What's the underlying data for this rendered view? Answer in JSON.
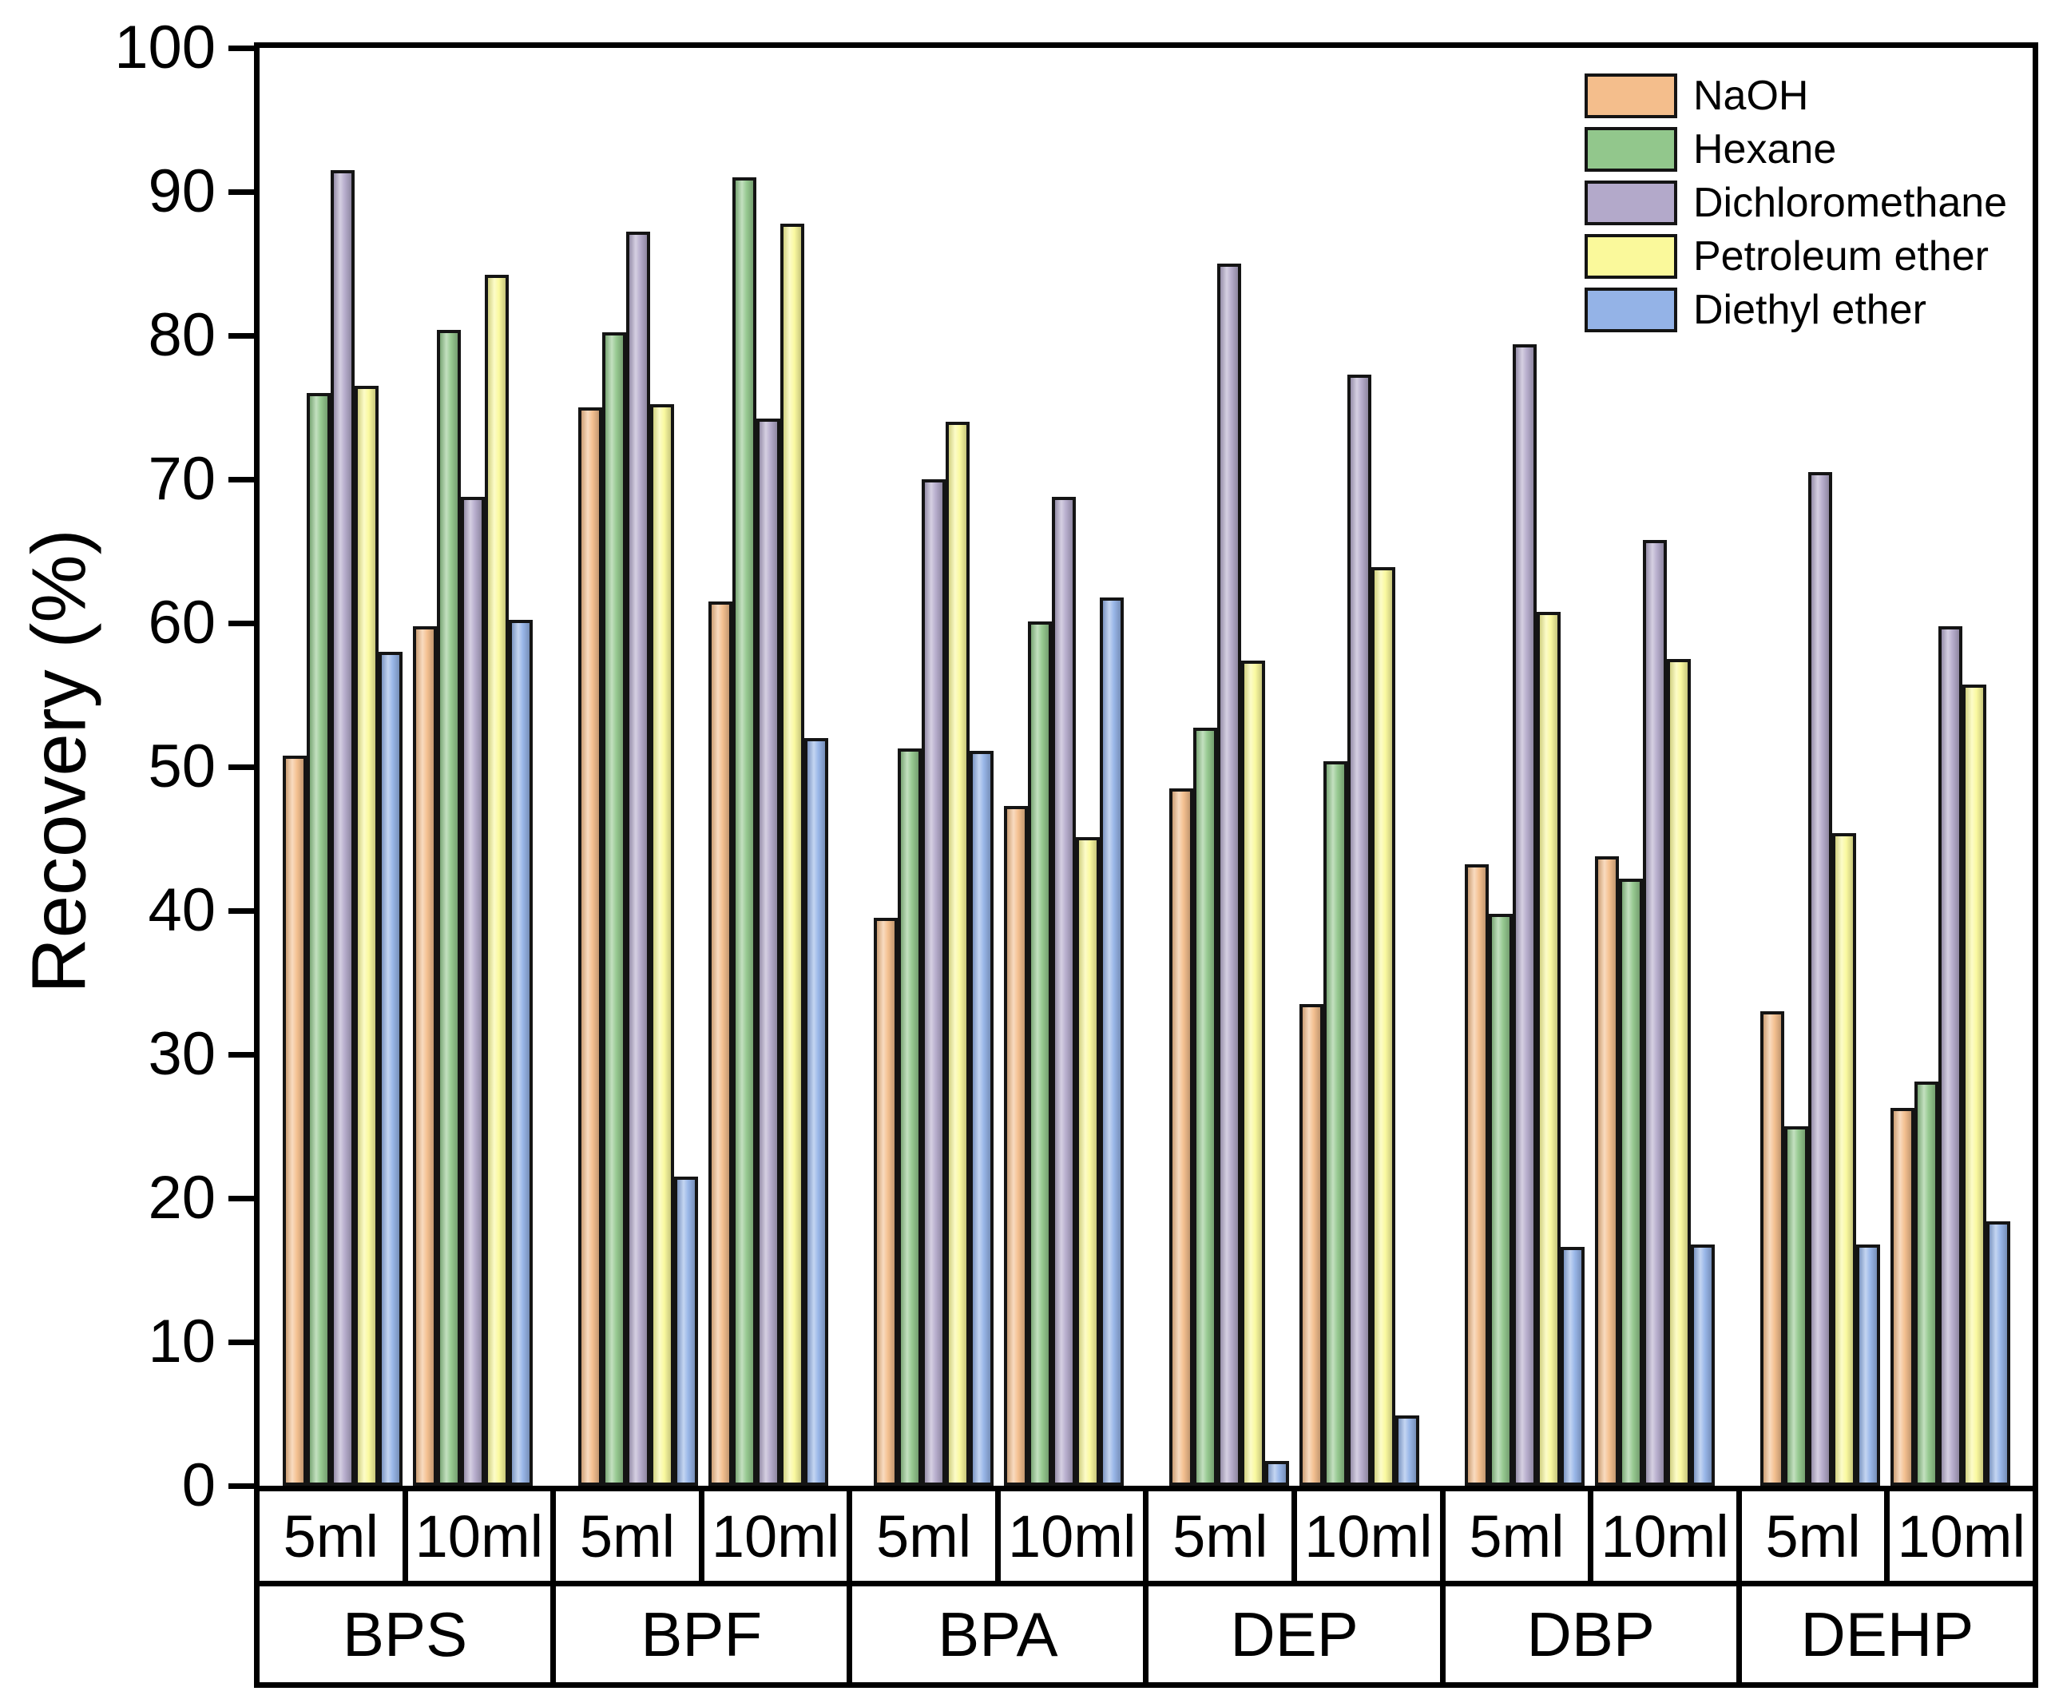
{
  "figure": {
    "background": "#ffffff",
    "axis_color": "#000000",
    "bar_border_color": "#141414",
    "legend_position": "top-right"
  },
  "chart_data": {
    "type": "bar",
    "title": "",
    "xlabel": "",
    "ylabel": "Recovery (%)",
    "ylim": [
      0,
      100
    ],
    "ytick_step": 10,
    "ytick_labels": [
      "0",
      "10",
      "20",
      "30",
      "40",
      "50",
      "60",
      "70",
      "80",
      "90",
      "100"
    ],
    "grid": false,
    "legend_position": "top-right",
    "groups": [
      "BPS",
      "BPF",
      "BPA",
      "DEP",
      "DBP",
      "DEHP"
    ],
    "subgroups": [
      "5ml",
      "10ml"
    ],
    "series": [
      {
        "name": "NaOH",
        "color": "#f4be8c",
        "values": [
          [
            50.8,
            59.8
          ],
          [
            75.0,
            61.5
          ],
          [
            39.5,
            47.3
          ],
          [
            48.5,
            33.5
          ],
          [
            43.2,
            43.8
          ],
          [
            33.0,
            26.3
          ]
        ]
      },
      {
        "name": "Hexane",
        "color": "#92c78c",
        "values": [
          [
            76.0,
            80.4
          ],
          [
            80.2,
            91.0
          ],
          [
            51.3,
            60.1
          ],
          [
            52.7,
            50.4
          ],
          [
            39.8,
            42.2
          ],
          [
            25.0,
            28.1
          ]
        ]
      },
      {
        "name": "Dichloromethane",
        "color": "#b3a9ca",
        "values": [
          [
            91.5,
            68.8
          ],
          [
            87.2,
            74.2
          ],
          [
            70.0,
            68.8
          ],
          [
            85.0,
            77.3
          ],
          [
            79.4,
            65.8
          ],
          [
            70.5,
            59.8
          ]
        ]
      },
      {
        "name": "Petroleum ether",
        "color": "#faf99b",
        "values": [
          [
            76.5,
            84.2
          ],
          [
            75.2,
            87.8
          ],
          [
            74.0,
            45.1
          ],
          [
            57.4,
            63.9
          ],
          [
            60.8,
            57.5
          ],
          [
            45.4,
            55.7
          ]
        ]
      },
      {
        "name": "Diethyl ether",
        "color": "#94b3e7",
        "values": [
          [
            58.0,
            60.2
          ],
          [
            21.5,
            52.0
          ],
          [
            51.1,
            61.8
          ],
          [
            1.7,
            4.9
          ],
          [
            16.6,
            16.8
          ],
          [
            16.8,
            18.4
          ]
        ]
      }
    ]
  }
}
